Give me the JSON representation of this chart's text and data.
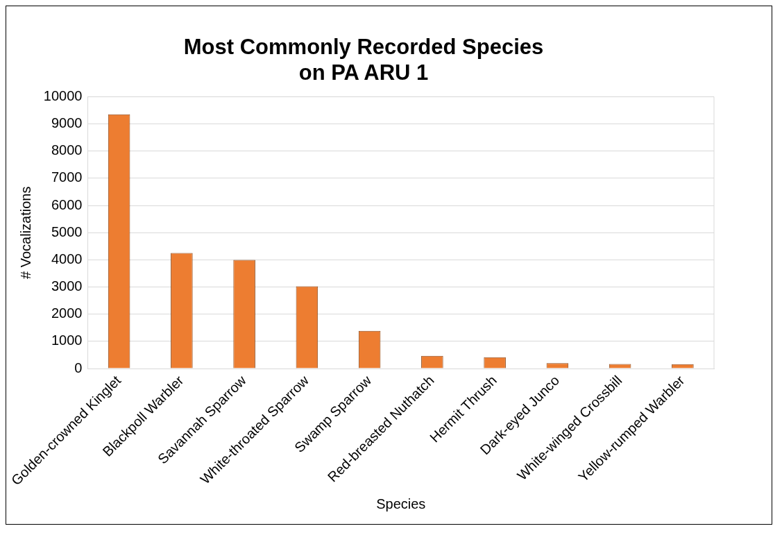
{
  "chart_data": {
    "type": "bar",
    "title": "Most Commonly Recorded Species\non PA ARU 1",
    "xlabel": "Species",
    "ylabel": "# Vocalizations",
    "categories": [
      "Golden-crowned Kinglet",
      "Blackpoll Warbler",
      "Savannah Sparrow",
      "White-throated Sparrow",
      "Swamp Sparrow",
      "Red-breasted Nuthatch",
      "Hermit Thrush",
      "Dark-eyed Junco",
      "White-winged Crossbill",
      "Yellow-rumped Warbler"
    ],
    "values": [
      9350,
      4250,
      4000,
      3030,
      1390,
      470,
      420,
      200,
      170,
      160
    ],
    "color": "#ed7d31",
    "ylim": [
      0,
      10000
    ],
    "yticks": [
      0,
      1000,
      2000,
      3000,
      4000,
      5000,
      6000,
      7000,
      8000,
      9000,
      10000
    ],
    "grid": "y"
  }
}
